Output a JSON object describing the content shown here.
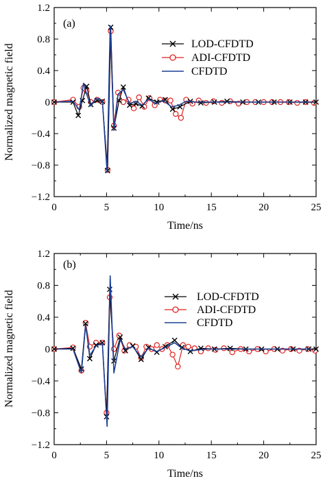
{
  "colors": {
    "lod": "#000000",
    "adi": "#e02020",
    "cfdtd": "#1c3f95",
    "axis": "#000000",
    "background": "#ffffff"
  },
  "chart_data": [
    {
      "type": "line",
      "panel_label": "(a)",
      "xlabel": "Time/ns",
      "ylabel": "Normalized magnetic field",
      "xlim": [
        0,
        25
      ],
      "ylim": [
        -1.2,
        1.2
      ],
      "x_ticks": [
        0,
        5,
        10,
        15,
        20,
        25
      ],
      "y_ticks": [
        -1.2,
        -0.8,
        -0.4,
        0,
        0.4,
        0.8,
        1.2
      ],
      "y_tick_labels": [
        "−1.2",
        "−0.8",
        "−0.4",
        "0",
        "0.4",
        "0.8",
        "1.2"
      ],
      "legend": {
        "position": "top-right",
        "entries": [
          "LOD-CFDTD",
          "ADI-CFDTD",
          "CFDTD"
        ]
      },
      "series": [
        {
          "name": "LOD-CFDTD",
          "marker": "x",
          "color": "#000000",
          "x": [
            0,
            1.8,
            2.3,
            2.7,
            3.1,
            3.5,
            4.1,
            4.6,
            5.1,
            5.4,
            5.7,
            6.2,
            6.6,
            7.2,
            7.8,
            8.4,
            9.0,
            9.8,
            10.6,
            11.3,
            12.0,
            13.0,
            14.0,
            15.3,
            16.5,
            18.0,
            19.5,
            21.0,
            22.5,
            24.0,
            25.0
          ],
          "y": [
            0,
            0,
            -0.17,
            0.02,
            0.2,
            -0.03,
            0.02,
            0.01,
            -0.87,
            0.95,
            -0.33,
            0.02,
            0.19,
            -0.04,
            -0.02,
            -0.05,
            0.05,
            0.0,
            0.03,
            -0.09,
            -0.06,
            0.01,
            -0.01,
            0.0,
            0.01,
            0.0,
            0.0,
            0.0,
            0.0,
            0.0,
            0.0
          ]
        },
        {
          "name": "ADI-CFDTD",
          "marker": "o",
          "color": "#e02020",
          "x": [
            0,
            1.8,
            2.4,
            2.8,
            3.1,
            3.5,
            4.1,
            4.6,
            5.1,
            5.4,
            5.7,
            6.1,
            6.6,
            7.1,
            7.6,
            8.1,
            8.6,
            9.1,
            9.6,
            10.1,
            10.6,
            11.1,
            11.6,
            12.1,
            12.6,
            13.2,
            13.8,
            14.5,
            15.2,
            16.0,
            16.8,
            17.6,
            18.4,
            19.2,
            20.0,
            20.8,
            21.6,
            22.4,
            23.2,
            24.0,
            24.8
          ],
          "y": [
            0,
            0.03,
            -0.06,
            0.18,
            0.14,
            0.0,
            0.03,
            0.0,
            -0.86,
            0.9,
            -0.3,
            0.12,
            0.0,
            0.03,
            -0.08,
            0.06,
            -0.06,
            0.05,
            -0.04,
            0.03,
            0.02,
            0.02,
            -0.15,
            -0.2,
            0.03,
            -0.02,
            0.02,
            -0.01,
            0.01,
            -0.01,
            0.01,
            -0.02,
            0.0,
            0.0,
            0.0,
            0.0,
            0.0,
            0.0,
            -0.01,
            0.0,
            -0.01
          ]
        },
        {
          "name": "CFDTD",
          "marker": "none",
          "color": "#1c3f95",
          "x": [
            0,
            1.8,
            2.4,
            2.8,
            3.1,
            3.5,
            4.0,
            4.6,
            5.05,
            5.35,
            5.7,
            6.1,
            6.6,
            7.2,
            7.8,
            8.4,
            9.0,
            9.7,
            10.4,
            11.2,
            11.9,
            12.6,
            13.5,
            15.0,
            17.0,
            20.0,
            25.0
          ],
          "y": [
            0,
            0.01,
            -0.1,
            0.24,
            0.1,
            -0.05,
            0.05,
            0.02,
            -0.89,
            0.97,
            -0.36,
            0.1,
            0.16,
            -0.02,
            0.01,
            -0.04,
            0.04,
            -0.02,
            0.02,
            -0.06,
            -0.04,
            0.01,
            0.0,
            0.0,
            0.0,
            0.0,
            0.0
          ]
        }
      ]
    },
    {
      "type": "line",
      "panel_label": "(b)",
      "xlabel": "Time/ns",
      "ylabel": "Normalized magnetic field",
      "xlim": [
        0,
        25
      ],
      "ylim": [
        -1.2,
        1.2
      ],
      "x_ticks": [
        0,
        5,
        10,
        15,
        20,
        25
      ],
      "y_ticks": [
        -1.2,
        -0.8,
        -0.4,
        0,
        0.4,
        0.8,
        1.2
      ],
      "y_tick_labels": [
        "−1.2",
        "−0.8",
        "−0.4",
        "0",
        "0.4",
        "0.8",
        "1.2"
      ],
      "legend": {
        "position": "top-right",
        "entries": [
          "LOD-CFDTD",
          "ADI-CFDTD",
          "CFDTD"
        ]
      },
      "series": [
        {
          "name": "LOD-CFDTD",
          "marker": "x",
          "color": "#000000",
          "x": [
            0,
            1.8,
            2.6,
            3.0,
            3.4,
            4.0,
            4.6,
            5.0,
            5.3,
            5.7,
            6.3,
            6.8,
            7.5,
            8.3,
            9.0,
            9.8,
            10.6,
            11.5,
            12.2,
            13.0,
            14.0,
            15.3,
            16.8,
            18.3,
            19.8,
            21.3,
            22.8,
            24.3,
            25.0
          ],
          "y": [
            0,
            0.01,
            -0.25,
            0.32,
            -0.12,
            0.05,
            0.08,
            -0.85,
            0.75,
            -0.15,
            0.15,
            -0.02,
            0.04,
            -0.13,
            0.02,
            -0.04,
            0.03,
            0.11,
            0.02,
            -0.03,
            0.01,
            0.0,
            0.01,
            0.0,
            0.0,
            0.0,
            0.0,
            0.0,
            0.0
          ]
        },
        {
          "name": "ADI-CFDTD",
          "marker": "o",
          "color": "#e02020",
          "x": [
            0,
            1.8,
            2.6,
            3.0,
            3.4,
            4.0,
            4.6,
            5.0,
            5.3,
            5.7,
            6.2,
            6.7,
            7.2,
            7.8,
            8.3,
            8.8,
            9.3,
            9.8,
            10.3,
            10.8,
            11.3,
            11.8,
            12.3,
            12.8,
            13.4,
            14.0,
            14.7,
            15.4,
            16.2,
            17.0,
            17.8,
            18.6,
            19.4,
            20.2,
            21.0,
            21.8,
            22.6,
            23.4,
            24.2,
            24.9
          ],
          "y": [
            0,
            0.02,
            -0.27,
            0.33,
            0.03,
            0.08,
            0.08,
            -0.8,
            0.65,
            0.0,
            0.17,
            -0.02,
            0.05,
            0.03,
            -0.11,
            0.03,
            0.0,
            0.05,
            0.0,
            0.05,
            -0.07,
            -0.22,
            0.05,
            0.03,
            0.01,
            -0.03,
            0.01,
            -0.01,
            0.01,
            -0.04,
            0.0,
            -0.03,
            0.0,
            -0.03,
            0.0,
            -0.02,
            0.0,
            -0.02,
            0.0,
            -0.02
          ]
        },
        {
          "name": "CFDTD",
          "marker": "none",
          "color": "#1c3f95",
          "x": [
            0,
            1.8,
            2.6,
            3.0,
            3.4,
            4.0,
            4.6,
            5.05,
            5.35,
            5.7,
            6.3,
            6.8,
            7.5,
            8.3,
            9.0,
            9.8,
            10.6,
            11.5,
            12.2,
            13.0,
            14.5,
            16.0,
            18.0,
            21.0,
            25.0
          ],
          "y": [
            0,
            0.0,
            -0.3,
            0.3,
            -0.08,
            0.04,
            0.07,
            -0.97,
            0.92,
            -0.3,
            0.12,
            0.0,
            0.03,
            -0.1,
            0.01,
            -0.03,
            0.02,
            0.08,
            0.01,
            -0.02,
            0.0,
            0.0,
            0.0,
            0.0,
            0.0
          ]
        }
      ]
    }
  ]
}
